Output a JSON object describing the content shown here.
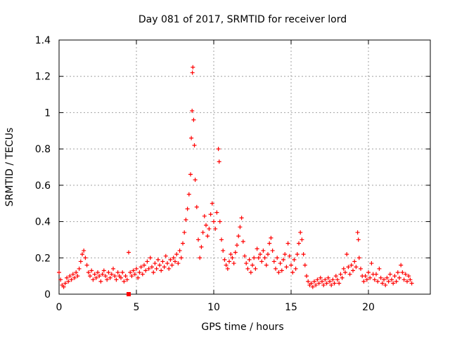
{
  "chart_data": {
    "type": "scatter",
    "title": "Day 081 of 2017, SRMTID for receiver lord",
    "xlabel": "GPS time / hours",
    "ylabel": "SRMTID / TECUs",
    "xlim": [
      0,
      24
    ],
    "ylim": [
      0,
      1.4
    ],
    "grid": true,
    "marker": "+",
    "marker_color": "#ff0000",
    "x_ticks": [
      {
        "value": 0,
        "label": "0"
      },
      {
        "value": 5,
        "label": "5"
      },
      {
        "value": 10,
        "label": "10"
      },
      {
        "value": 15,
        "label": "15"
      },
      {
        "value": 20,
        "label": "20"
      }
    ],
    "y_ticks": [
      {
        "value": 0,
        "label": "0"
      },
      {
        "value": 0.2,
        "label": "0.2"
      },
      {
        "value": 0.4,
        "label": "0.4"
      },
      {
        "value": 0.6,
        "label": "0.6"
      },
      {
        "value": 0.8,
        "label": "0.8"
      },
      {
        "value": 1.0,
        "label": "1"
      },
      {
        "value": 1.2,
        "label": "1.2"
      },
      {
        "value": 1.4,
        "label": "1.4"
      }
    ],
    "series": [
      {
        "name": "SRMTID",
        "points": [
          [
            0.0,
            0.12
          ],
          [
            0.1,
            0.08
          ],
          [
            0.2,
            0.05
          ],
          [
            0.3,
            0.04
          ],
          [
            0.4,
            0.06
          ],
          [
            0.5,
            0.09
          ],
          [
            0.6,
            0.07
          ],
          [
            0.7,
            0.1
          ],
          [
            0.8,
            0.08
          ],
          [
            0.9,
            0.11
          ],
          [
            1.0,
            0.09
          ],
          [
            1.1,
            0.12
          ],
          [
            1.2,
            0.1
          ],
          [
            1.3,
            0.14
          ],
          [
            1.4,
            0.18
          ],
          [
            1.5,
            0.22
          ],
          [
            1.6,
            0.24
          ],
          [
            1.7,
            0.2
          ],
          [
            1.8,
            0.16
          ],
          [
            1.9,
            0.12
          ],
          [
            2.0,
            0.1
          ],
          [
            2.1,
            0.13
          ],
          [
            2.2,
            0.08
          ],
          [
            2.3,
            0.11
          ],
          [
            2.4,
            0.09
          ],
          [
            2.5,
            0.12
          ],
          [
            2.6,
            0.1
          ],
          [
            2.7,
            0.07
          ],
          [
            2.8,
            0.11
          ],
          [
            2.9,
            0.13
          ],
          [
            3.0,
            0.1
          ],
          [
            3.1,
            0.08
          ],
          [
            3.2,
            0.12
          ],
          [
            3.3,
            0.09
          ],
          [
            3.4,
            0.11
          ],
          [
            3.5,
            0.14
          ],
          [
            3.6,
            0.1
          ],
          [
            3.7,
            0.08
          ],
          [
            3.8,
            0.12
          ],
          [
            3.9,
            0.1
          ],
          [
            4.0,
            0.09
          ],
          [
            4.1,
            0.12
          ],
          [
            4.2,
            0.07
          ],
          [
            4.3,
            0.1
          ],
          [
            4.4,
            0.08
          ],
          [
            4.5,
            0.23
          ],
          [
            4.6,
            0.12
          ],
          [
            4.7,
            0.1
          ],
          [
            4.8,
            0.13
          ],
          [
            4.9,
            0.11
          ],
          [
            5.0,
            0.14
          ],
          [
            5.1,
            0.09
          ],
          [
            5.2,
            0.12
          ],
          [
            5.3,
            0.15
          ],
          [
            5.4,
            0.11
          ],
          [
            5.5,
            0.16
          ],
          [
            5.6,
            0.13
          ],
          [
            5.7,
            0.18
          ],
          [
            5.8,
            0.14
          ],
          [
            5.9,
            0.2
          ],
          [
            6.0,
            0.15
          ],
          [
            6.1,
            0.12
          ],
          [
            6.2,
            0.17
          ],
          [
            6.3,
            0.14
          ],
          [
            6.4,
            0.19
          ],
          [
            6.5,
            0.16
          ],
          [
            6.6,
            0.13
          ],
          [
            6.7,
            0.18
          ],
          [
            6.8,
            0.15
          ],
          [
            6.9,
            0.21
          ],
          [
            7.0,
            0.17
          ],
          [
            7.1,
            0.14
          ],
          [
            7.2,
            0.19
          ],
          [
            7.3,
            0.16
          ],
          [
            7.4,
            0.2
          ],
          [
            7.5,
            0.18
          ],
          [
            7.6,
            0.22
          ],
          [
            7.7,
            0.17
          ],
          [
            7.8,
            0.24
          ],
          [
            7.9,
            0.2
          ],
          [
            8.0,
            0.28
          ],
          [
            8.1,
            0.34
          ],
          [
            8.2,
            0.41
          ],
          [
            8.3,
            0.47
          ],
          [
            8.4,
            0.55
          ],
          [
            8.5,
            0.66
          ],
          [
            8.55,
            0.86
          ],
          [
            8.6,
            1.01
          ],
          [
            8.62,
            1.22
          ],
          [
            8.65,
            1.25
          ],
          [
            8.7,
            0.96
          ],
          [
            8.75,
            0.82
          ],
          [
            8.8,
            0.63
          ],
          [
            8.9,
            0.48
          ],
          [
            9.0,
            0.3
          ],
          [
            9.1,
            0.2
          ],
          [
            9.2,
            0.26
          ],
          [
            9.3,
            0.34
          ],
          [
            9.4,
            0.43
          ],
          [
            9.5,
            0.38
          ],
          [
            9.6,
            0.32
          ],
          [
            9.7,
            0.36
          ],
          [
            9.8,
            0.44
          ],
          [
            9.9,
            0.5
          ],
          [
            10.0,
            0.4
          ],
          [
            10.1,
            0.36
          ],
          [
            10.2,
            0.45
          ],
          [
            10.3,
            0.8
          ],
          [
            10.35,
            0.73
          ],
          [
            10.4,
            0.4
          ],
          [
            10.5,
            0.3
          ],
          [
            10.6,
            0.24
          ],
          [
            10.7,
            0.19
          ],
          [
            10.8,
            0.16
          ],
          [
            10.9,
            0.14
          ],
          [
            11.0,
            0.18
          ],
          [
            11.1,
            0.22
          ],
          [
            11.2,
            0.2
          ],
          [
            11.3,
            0.17
          ],
          [
            11.4,
            0.23
          ],
          [
            11.5,
            0.27
          ],
          [
            11.6,
            0.32
          ],
          [
            11.7,
            0.37
          ],
          [
            11.8,
            0.42
          ],
          [
            11.9,
            0.29
          ],
          [
            12.0,
            0.21
          ],
          [
            12.1,
            0.17
          ],
          [
            12.2,
            0.14
          ],
          [
            12.3,
            0.19
          ],
          [
            12.4,
            0.12
          ],
          [
            12.5,
            0.16
          ],
          [
            12.6,
            0.2
          ],
          [
            12.7,
            0.14
          ],
          [
            12.8,
            0.25
          ],
          [
            12.9,
            0.2
          ],
          [
            13.0,
            0.22
          ],
          [
            13.1,
            0.18
          ],
          [
            13.2,
            0.24
          ],
          [
            13.3,
            0.2
          ],
          [
            13.4,
            0.16
          ],
          [
            13.5,
            0.22
          ],
          [
            13.6,
            0.28
          ],
          [
            13.7,
            0.31
          ],
          [
            13.8,
            0.24
          ],
          [
            13.9,
            0.18
          ],
          [
            14.0,
            0.14
          ],
          [
            14.1,
            0.2
          ],
          [
            14.2,
            0.12
          ],
          [
            14.3,
            0.17
          ],
          [
            14.4,
            0.13
          ],
          [
            14.5,
            0.19
          ],
          [
            14.6,
            0.22
          ],
          [
            14.7,
            0.15
          ],
          [
            14.8,
            0.28
          ],
          [
            14.9,
            0.21
          ],
          [
            15.0,
            0.16
          ],
          [
            15.1,
            0.12
          ],
          [
            15.2,
            0.19
          ],
          [
            15.3,
            0.14
          ],
          [
            15.4,
            0.22
          ],
          [
            15.5,
            0.28
          ],
          [
            15.6,
            0.34
          ],
          [
            15.7,
            0.3
          ],
          [
            15.8,
            0.22
          ],
          [
            15.9,
            0.16
          ],
          [
            16.0,
            0.1
          ],
          [
            16.1,
            0.07
          ],
          [
            16.2,
            0.05
          ],
          [
            16.3,
            0.06
          ],
          [
            16.4,
            0.04
          ],
          [
            16.5,
            0.07
          ],
          [
            16.6,
            0.05
          ],
          [
            16.7,
            0.08
          ],
          [
            16.8,
            0.06
          ],
          [
            16.9,
            0.09
          ],
          [
            17.0,
            0.07
          ],
          [
            17.1,
            0.05
          ],
          [
            17.2,
            0.08
          ],
          [
            17.3,
            0.06
          ],
          [
            17.4,
            0.09
          ],
          [
            17.5,
            0.07
          ],
          [
            17.6,
            0.05
          ],
          [
            17.7,
            0.08
          ],
          [
            17.8,
            0.06
          ],
          [
            17.9,
            0.1
          ],
          [
            18.0,
            0.08
          ],
          [
            18.1,
            0.06
          ],
          [
            18.2,
            0.11
          ],
          [
            18.3,
            0.09
          ],
          [
            18.4,
            0.14
          ],
          [
            18.5,
            0.12
          ],
          [
            18.6,
            0.22
          ],
          [
            18.7,
            0.15
          ],
          [
            18.8,
            0.11
          ],
          [
            18.9,
            0.16
          ],
          [
            19.0,
            0.13
          ],
          [
            19.1,
            0.18
          ],
          [
            19.2,
            0.15
          ],
          [
            19.3,
            0.34
          ],
          [
            19.35,
            0.3
          ],
          [
            19.4,
            0.2
          ],
          [
            19.5,
            0.14
          ],
          [
            19.6,
            0.1
          ],
          [
            19.7,
            0.07
          ],
          [
            19.8,
            0.1
          ],
          [
            19.9,
            0.08
          ],
          [
            20.0,
            0.12
          ],
          [
            20.1,
            0.09
          ],
          [
            20.2,
            0.17
          ],
          [
            20.3,
            0.11
          ],
          [
            20.4,
            0.08
          ],
          [
            20.5,
            0.11
          ],
          [
            20.6,
            0.07
          ],
          [
            20.7,
            0.14
          ],
          [
            20.8,
            0.09
          ],
          [
            20.9,
            0.06
          ],
          [
            21.0,
            0.08
          ],
          [
            21.1,
            0.05
          ],
          [
            21.2,
            0.09
          ],
          [
            21.3,
            0.07
          ],
          [
            21.4,
            0.11
          ],
          [
            21.5,
            0.08
          ],
          [
            21.6,
            0.06
          ],
          [
            21.7,
            0.1
          ],
          [
            21.8,
            0.07
          ],
          [
            21.9,
            0.12
          ],
          [
            22.0,
            0.09
          ],
          [
            22.1,
            0.16
          ],
          [
            22.2,
            0.12
          ],
          [
            22.3,
            0.08
          ],
          [
            22.4,
            0.11
          ],
          [
            22.5,
            0.07
          ],
          [
            22.6,
            0.1
          ],
          [
            22.7,
            0.08
          ],
          [
            22.8,
            0.06
          ]
        ]
      }
    ],
    "outlier_marker": {
      "x": 4.5,
      "y": 0.0,
      "shape": "square"
    }
  }
}
